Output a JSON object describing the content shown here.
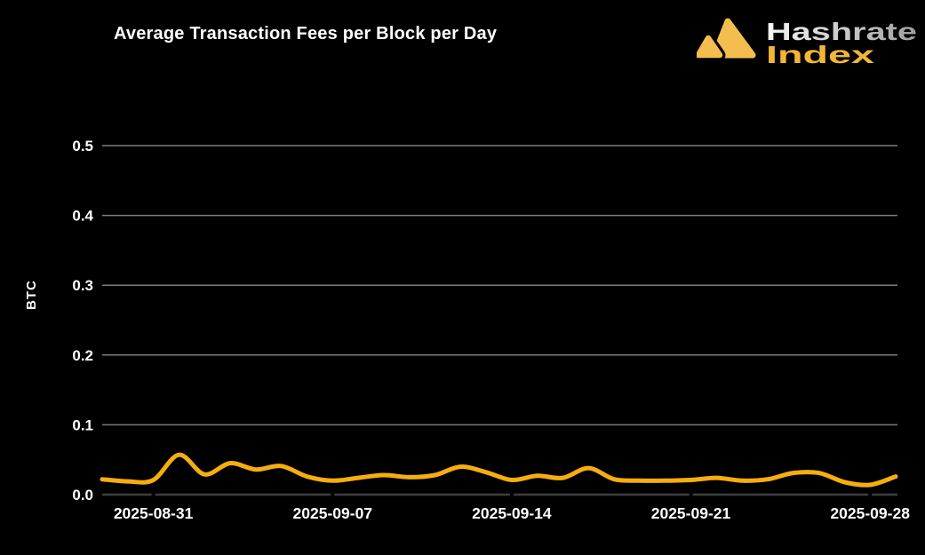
{
  "header": {
    "title": "Average Transaction Fees per Block per Day"
  },
  "logo": {
    "line1": "Hashrate",
    "line2": "Index",
    "mark_color": "#F4BE4E",
    "line1_gradient": [
      "#F7F7F7",
      "#9E9E9E"
    ],
    "line2_color": "#F2B636"
  },
  "theme": {
    "background": "#000000",
    "grid_color": "#7D7D7D",
    "axis_color": "#3E3E3E",
    "text_color": "#FFFFFF",
    "line_color": "#F6AE0F"
  },
  "chart_data": {
    "type": "line",
    "title": "Average Transaction Fees per Block per Day",
    "xlabel": "",
    "ylabel": "BTC",
    "ylim": [
      0,
      0.55
    ],
    "yticks": [
      0,
      0.1,
      0.2,
      0.3,
      0.4,
      0.5
    ],
    "ytick_labels": [
      "0.0",
      "0.1",
      "0.2",
      "0.3",
      "0.4",
      "0.5"
    ],
    "xtick_labels": [
      "2025-08-31",
      "2025-09-07",
      "2025-09-14",
      "2025-09-21",
      "2025-09-28"
    ],
    "grid": "horizontal-only",
    "legend": "none",
    "x": [
      "2025-08-29",
      "2025-08-30",
      "2025-08-31",
      "2025-09-01",
      "2025-09-02",
      "2025-09-03",
      "2025-09-04",
      "2025-09-05",
      "2025-09-06",
      "2025-09-07",
      "2025-09-08",
      "2025-09-09",
      "2025-09-10",
      "2025-09-11",
      "2025-09-12",
      "2025-09-13",
      "2025-09-14",
      "2025-09-15",
      "2025-09-16",
      "2025-09-17",
      "2025-09-18",
      "2025-09-19",
      "2025-09-20",
      "2025-09-21",
      "2025-09-22",
      "2025-09-23",
      "2025-09-24",
      "2025-09-25",
      "2025-09-26",
      "2025-09-27",
      "2025-09-28",
      "2025-09-29"
    ],
    "series": [
      {
        "name": "Average Transaction Fees per Block (BTC)",
        "color": "#F6AE0F",
        "values": [
          0.022,
          0.019,
          0.021,
          0.057,
          0.029,
          0.045,
          0.036,
          0.041,
          0.026,
          0.02,
          0.024,
          0.028,
          0.025,
          0.028,
          0.04,
          0.032,
          0.021,
          0.027,
          0.024,
          0.038,
          0.022,
          0.02,
          0.02,
          0.021,
          0.024,
          0.02,
          0.022,
          0.031,
          0.031,
          0.018,
          0.014,
          0.026
        ]
      }
    ]
  }
}
